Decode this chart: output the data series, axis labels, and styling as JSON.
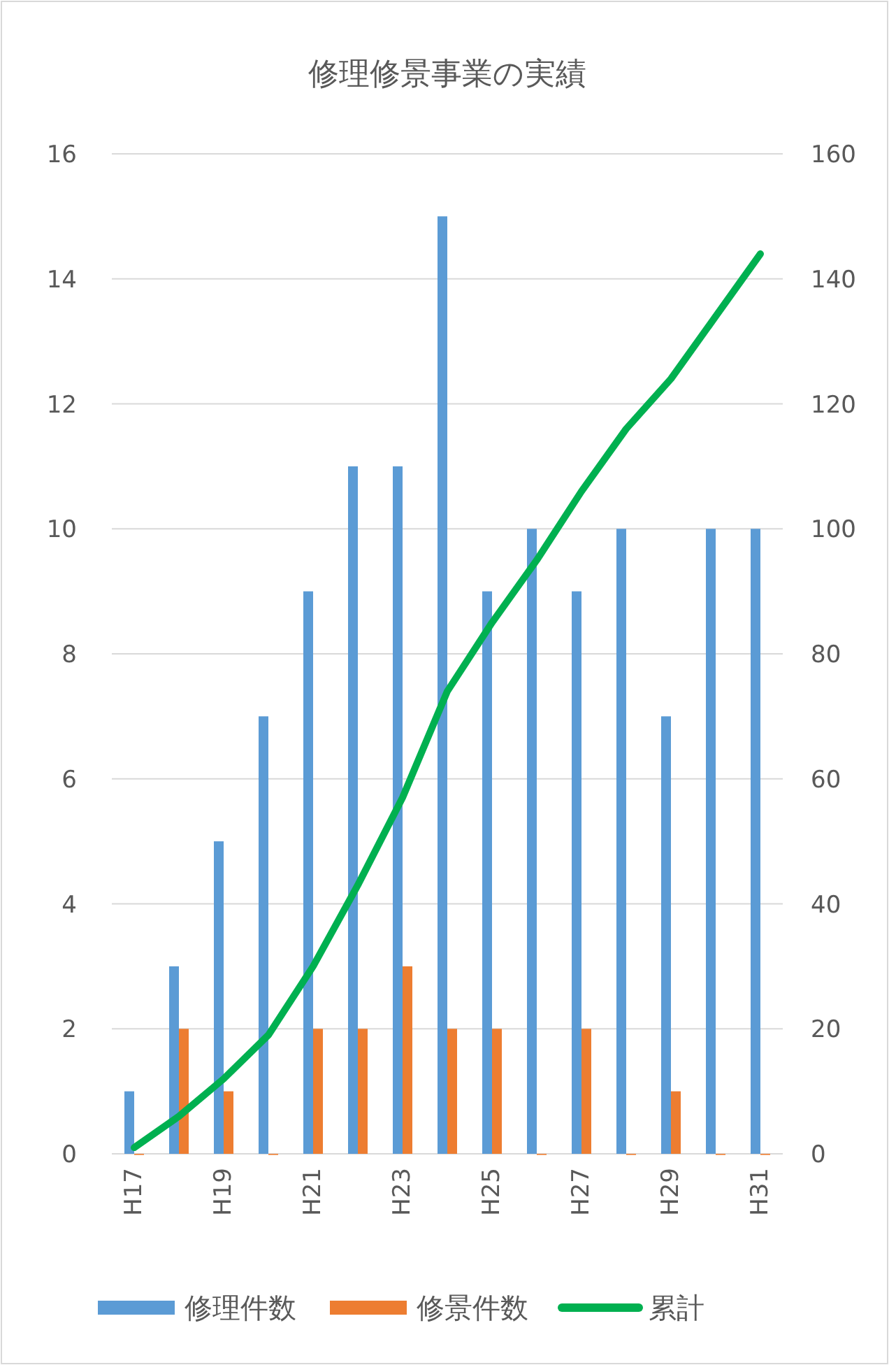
{
  "chart_data": {
    "type": "bar",
    "title": "修理修景事業の実績",
    "categories": [
      "H17",
      null,
      "H19",
      null,
      "H21",
      null,
      "H23",
      null,
      "H25",
      null,
      "H27",
      null,
      "H29",
      null,
      "H31"
    ],
    "series": [
      {
        "name": "修理件数",
        "color": "#5b9bd5",
        "values": [
          1,
          3,
          5,
          7,
          9,
          11,
          11,
          15,
          9,
          10,
          9,
          10,
          7,
          10,
          10
        ]
      },
      {
        "name": "修景件数",
        "color": "#ed7d31",
        "values": [
          0,
          2,
          1,
          0,
          2,
          2,
          3,
          2,
          2,
          0,
          2,
          0,
          1,
          0,
          0
        ]
      },
      {
        "name": "累計",
        "color": "#00b050",
        "type": "line",
        "axis": "y2",
        "values": [
          1,
          6,
          12,
          19,
          30,
          43,
          57,
          74,
          85,
          95,
          106,
          116,
          124,
          134,
          144
        ]
      }
    ],
    "ylim": [
      0,
      16
    ],
    "yticks": [
      0,
      2,
      4,
      6,
      8,
      10,
      12,
      14,
      16
    ],
    "y2lim": [
      0,
      160
    ],
    "y2ticks": [
      0,
      20,
      40,
      60,
      80,
      100,
      120,
      140,
      160
    ],
    "grid": "y",
    "legend": "bottom"
  }
}
